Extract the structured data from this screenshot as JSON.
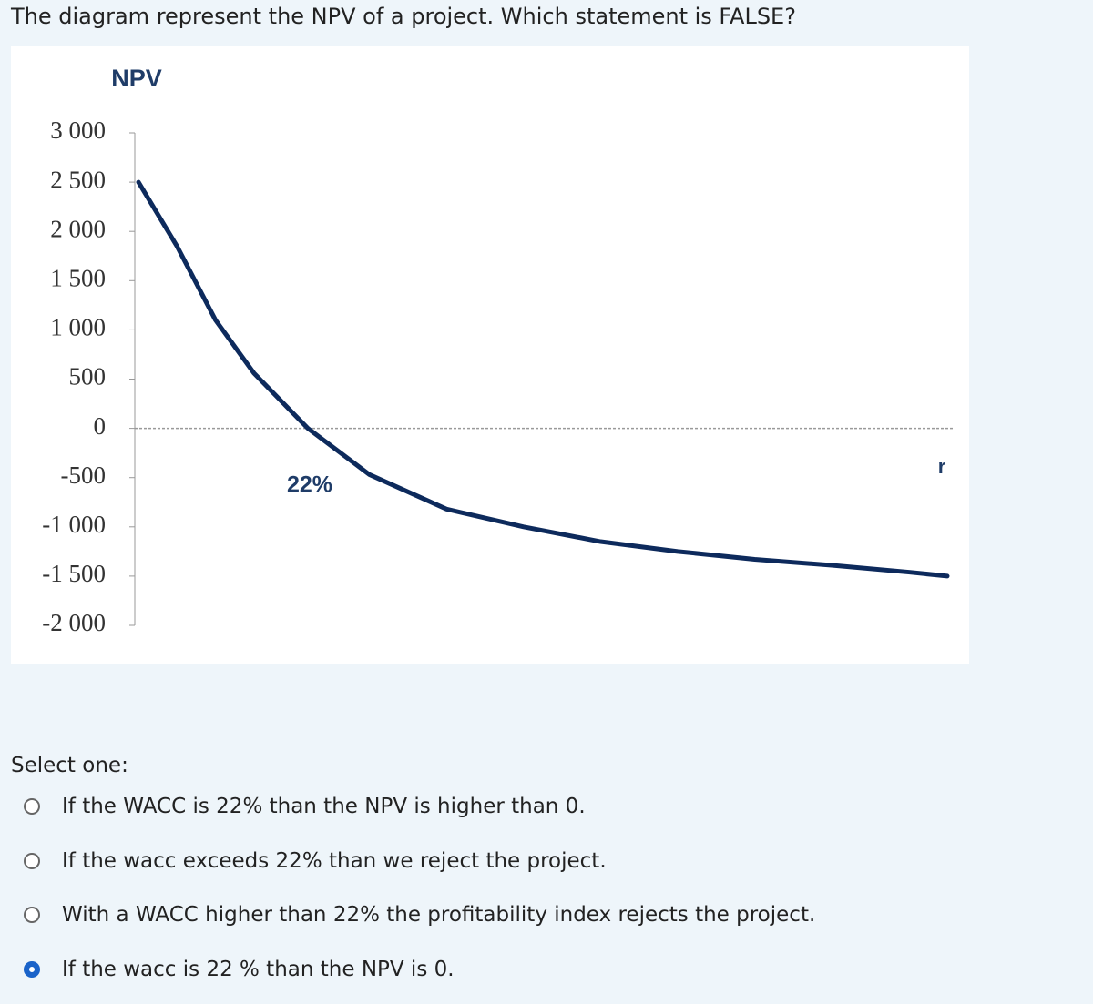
{
  "question": "The diagram represent the NPV of a project. Which statement is FALSE?",
  "chart_data": {
    "type": "line",
    "y_label": "NPV",
    "x_label": "r",
    "annotation": "22%",
    "x": [
      0,
      5,
      10,
      15,
      22,
      30,
      40,
      50,
      60,
      70,
      80,
      90,
      100,
      105
    ],
    "series": [
      {
        "name": "NPV",
        "color": "#0d2a5c",
        "values": [
          2500,
          1850,
          1100,
          560,
          0,
          -470,
          -820,
          -1000,
          -1150,
          -1250,
          -1330,
          -1390,
          -1460,
          -1500
        ]
      }
    ],
    "xlim": [
      0,
      105
    ],
    "ylim": [
      -2000,
      3000
    ],
    "yticks": [
      {
        "value": 3000,
        "label": "3 000"
      },
      {
        "value": 2500,
        "label": "2 500"
      },
      {
        "value": 2000,
        "label": "2 000"
      },
      {
        "value": 1500,
        "label": "1 500"
      },
      {
        "value": 1000,
        "label": "1 000"
      },
      500,
      0,
      -500,
      {
        "value": -1000,
        "label": "-1 000"
      },
      {
        "value": -1500,
        "label": "-1 500"
      },
      {
        "value": -2000,
        "label": "-2 000"
      }
    ],
    "zero_line": true
  },
  "prompt": "Select one:",
  "options": [
    "If the WACC is 22% than the NPV is higher than 0.",
    "If the wacc exceeds 22% than we reject the project.",
    "With a WACC higher than 22% the profitability index rejects the project.",
    "If the wacc is 22 % than the NPV is 0."
  ],
  "selected": 3
}
